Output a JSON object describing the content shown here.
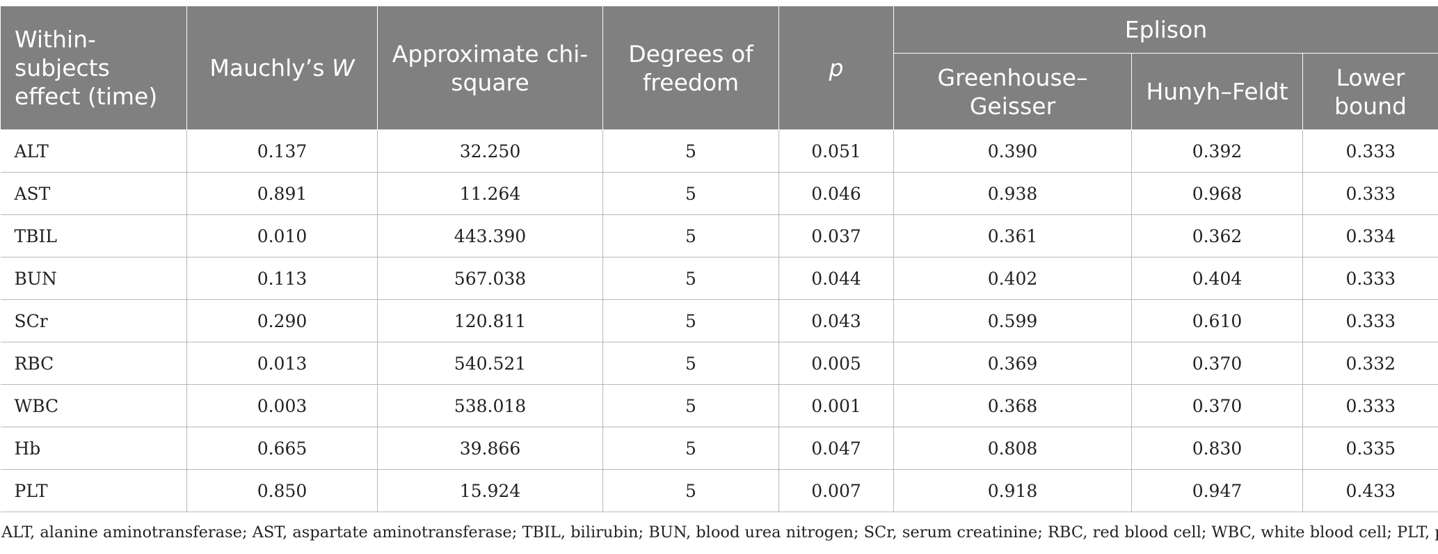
{
  "table": {
    "headers": {
      "effect": "Within-subjects effect (time)",
      "mauchly_prefix": "Mauchly’s ",
      "mauchly_var": "W",
      "chi": "Approximate chi-square",
      "df": "Degrees of freedom",
      "p": "p",
      "epsilon_group": "Eplison",
      "gg": "Greenhouse–Geisser",
      "hf": "Hunyh–Feldt",
      "lb": "Lower bound"
    },
    "rows": [
      {
        "name": "ALT",
        "w": "0.137",
        "chi": "32.250",
        "df": "5",
        "p": "0.051",
        "gg": "0.390",
        "hf": "0.392",
        "lb": "0.333"
      },
      {
        "name": "AST",
        "w": "0.891",
        "chi": "11.264",
        "df": "5",
        "p": "0.046",
        "gg": "0.938",
        "hf": "0.968",
        "lb": "0.333"
      },
      {
        "name": "TBIL",
        "w": "0.010",
        "chi": "443.390",
        "df": "5",
        "p": "0.037",
        "gg": "0.361",
        "hf": "0.362",
        "lb": "0.334"
      },
      {
        "name": "BUN",
        "w": "0.113",
        "chi": "567.038",
        "df": "5",
        "p": "0.044",
        "gg": "0.402",
        "hf": "0.404",
        "lb": "0.333"
      },
      {
        "name": "SCr",
        "w": "0.290",
        "chi": "120.811",
        "df": "5",
        "p": "0.043",
        "gg": "0.599",
        "hf": "0.610",
        "lb": "0.333"
      },
      {
        "name": "RBC",
        "w": "0.013",
        "chi": "540.521",
        "df": "5",
        "p": "0.005",
        "gg": "0.369",
        "hf": "0.370",
        "lb": "0.332"
      },
      {
        "name": "WBC",
        "w": "0.003",
        "chi": "538.018",
        "df": "5",
        "p": "0.001",
        "gg": "0.368",
        "hf": "0.370",
        "lb": "0.333"
      },
      {
        "name": "Hb",
        "w": "0.665",
        "chi": "39.866",
        "df": "5",
        "p": "0.047",
        "gg": "0.808",
        "hf": "0.830",
        "lb": "0.335"
      },
      {
        "name": "PLT",
        "w": "0.850",
        "chi": "15.924",
        "df": "5",
        "p": "0.007",
        "gg": "0.918",
        "hf": "0.947",
        "lb": "0.433"
      }
    ]
  },
  "footnote": "ALT, alanine aminotransferase; AST, aspartate aminotransferase; TBIL, bilirubin; BUN, blood urea nitrogen; SCr, serum creatinine; RBC, red blood cell; WBC, white blood cell; PLT, platelet."
}
